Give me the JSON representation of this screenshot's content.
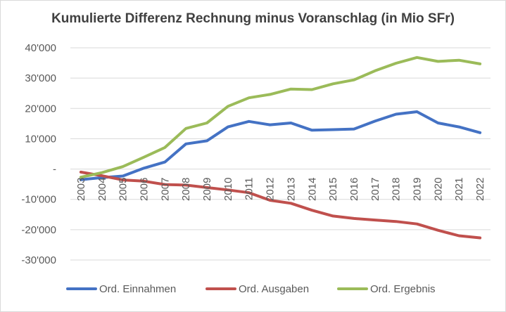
{
  "chart_data": {
    "type": "line",
    "title": "Kumulierte Differenz Rechnung minus Voranschlag (in Mio SFr)",
    "xlabel": "",
    "ylabel": "",
    "categories": [
      "2003",
      "2004",
      "2005",
      "2006",
      "2007",
      "2008",
      "2009",
      "2010",
      "2011",
      "2012",
      "2013",
      "2014",
      "2015",
      "2016",
      "2017",
      "2018",
      "2019",
      "2020",
      "2021",
      "2022"
    ],
    "ylim": [
      -30000,
      40000
    ],
    "yticks": [
      40000,
      30000,
      20000,
      10000,
      0,
      -10000,
      -20000,
      -30000
    ],
    "ytick_labels": [
      "40'000",
      "30'000",
      "20'000",
      "10'000",
      "-",
      "-10'000",
      "-20'000",
      "-30'000"
    ],
    "grid": true,
    "legend": "bottom",
    "series": [
      {
        "name": "Ord. Einnahmen",
        "color": "#4472c4",
        "values": [
          -3500,
          -2800,
          -2300,
          300,
          2300,
          8300,
          9300,
          13900,
          15700,
          14600,
          15200,
          12800,
          13000,
          13200,
          15800,
          18100,
          18900,
          15200,
          13900,
          12000
        ]
      },
      {
        "name": "Ord. Ausgaben",
        "color": "#c0504d",
        "values": [
          -1000,
          -2200,
          -3600,
          -4000,
          -5100,
          -5300,
          -6100,
          -6900,
          -7800,
          -10300,
          -11300,
          -13600,
          -15500,
          -16300,
          -16800,
          -17300,
          -18100,
          -20200,
          -22000,
          -22700
        ]
      },
      {
        "name": "Ord. Ergebnis",
        "color": "#9bbb59",
        "values": [
          -2700,
          -1200,
          800,
          3900,
          7100,
          13400,
          15200,
          20700,
          23500,
          24600,
          26400,
          26200,
          28100,
          29400,
          32400,
          34900,
          36800,
          35500,
          35900,
          34700
        ]
      }
    ]
  }
}
